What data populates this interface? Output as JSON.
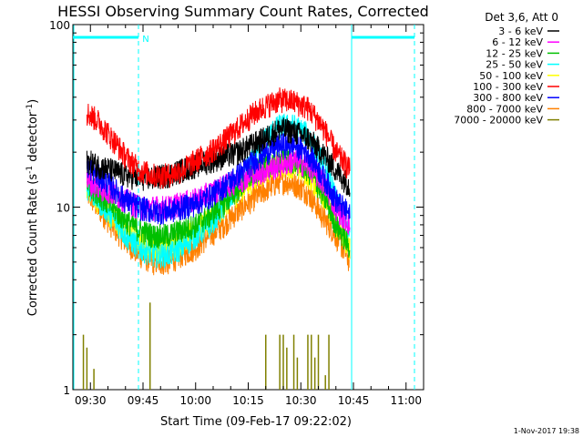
{
  "chart_data": {
    "type": "line",
    "title": "HESSI Observing Summary Count Rates, Corrected",
    "xlabel": "Start Time (09-Feb-17 09:22:02)",
    "ylabel_main": "Corrected Count Rate (s",
    "ylabel_sup": "-1",
    "ylabel_mid": " detector",
    "ylabel_sup2": "-1",
    "ylabel_end": ")",
    "y_scale": "log",
    "xlim_minutes": [
      565,
      665
    ],
    "ylim": [
      1,
      100
    ],
    "x_ticks": [
      {
        "label": "09:30",
        "minute": 570
      },
      {
        "label": "09:45",
        "minute": 585
      },
      {
        "label": "10:00",
        "minute": 600
      },
      {
        "label": "10:15",
        "minute": 615
      },
      {
        "label": "10:30",
        "minute": 630
      },
      {
        "label": "10:45",
        "minute": 645
      },
      {
        "label": "11:00",
        "minute": 660
      }
    ],
    "y_ticks": [
      {
        "label": "1",
        "value": 1
      },
      {
        "label": "10",
        "value": 10
      },
      {
        "label": "100",
        "value": 100
      }
    ],
    "legend_header": "Det 3,6, Att 0",
    "legend_position": "top-right-outside",
    "night_marker": "N",
    "timestamp": "1-Nov-2017 19:38",
    "series": [
      {
        "name": "3 - 6 keV",
        "color": "#000000",
        "x": [
          569,
          572,
          576,
          580,
          584,
          588,
          592,
          596,
          600,
          604,
          608,
          612,
          616,
          620,
          624,
          628,
          632,
          636,
          640,
          644
        ],
        "y": [
          18,
          17,
          16,
          15,
          14.5,
          14.5,
          15,
          16,
          17,
          18,
          19,
          20,
          22,
          24,
          27,
          26,
          24,
          20,
          16,
          13
        ]
      },
      {
        "name": "6 - 12 keV",
        "color": "#ff00ff",
        "x": [
          569,
          572,
          576,
          580,
          584,
          588,
          592,
          596,
          600,
          604,
          608,
          612,
          616,
          620,
          624,
          628,
          632,
          636,
          640,
          644
        ],
        "y": [
          14,
          13,
          12,
          11,
          10,
          10,
          10,
          10.5,
          11,
          12,
          13,
          14,
          15,
          16,
          17,
          18,
          17,
          14,
          10,
          8
        ]
      },
      {
        "name": "12 - 25 keV",
        "color": "#00c000",
        "x": [
          569,
          572,
          576,
          580,
          584,
          588,
          592,
          596,
          600,
          604,
          608,
          612,
          616,
          620,
          624,
          628,
          632,
          636,
          640,
          644
        ],
        "y": [
          14,
          12,
          10,
          8.5,
          7.5,
          7,
          7,
          7.5,
          8,
          9,
          10.5,
          12.5,
          15,
          17,
          18,
          18,
          16,
          12,
          8,
          6
        ]
      },
      {
        "name": "25 - 50 keV",
        "color": "#00ffff",
        "x": [
          569,
          572,
          576,
          580,
          584,
          588,
          592,
          596,
          600,
          604,
          608,
          612,
          616,
          620,
          624,
          628,
          632,
          636,
          640,
          644
        ],
        "y": [
          13,
          11,
          9,
          7,
          6,
          5.5,
          5.5,
          6,
          7,
          8,
          10,
          13,
          18,
          24,
          28,
          28,
          25,
          18,
          11,
          7
        ]
      },
      {
        "name": "50 - 100 keV",
        "color": "#ffff00",
        "x": [
          569,
          572,
          576,
          580,
          584,
          588,
          592,
          596,
          600,
          604,
          608,
          612,
          616,
          620,
          624,
          628,
          632,
          636,
          640,
          644
        ],
        "y": [
          13,
          11,
          9,
          7.5,
          6.5,
          6,
          6,
          6.5,
          7.5,
          8.5,
          10,
          12,
          14,
          16,
          17,
          17,
          15,
          12,
          8,
          6
        ]
      },
      {
        "name": "100 - 300 keV",
        "color": "#ff0000",
        "x": [
          569,
          572,
          576,
          580,
          584,
          588,
          592,
          596,
          600,
          604,
          608,
          612,
          616,
          620,
          624,
          628,
          632,
          636,
          640,
          644
        ],
        "y": [
          33,
          30,
          24,
          19,
          16,
          15,
          15,
          16,
          18,
          20,
          23,
          27,
          32,
          36,
          39,
          38,
          35,
          28,
          20,
          16
        ]
      },
      {
        "name": "300 - 800 keV",
        "color": "#0000ff",
        "x": [
          569,
          572,
          576,
          580,
          584,
          588,
          592,
          596,
          600,
          604,
          608,
          612,
          616,
          620,
          624,
          628,
          632,
          636,
          640,
          644
        ],
        "y": [
          17,
          15,
          13,
          11,
          10,
          9.5,
          9.5,
          10,
          10.5,
          11.5,
          13,
          15,
          17.5,
          20,
          22,
          22,
          20,
          15,
          11,
          9
        ]
      },
      {
        "name": "800 - 7000 keV",
        "color": "#ff8000",
        "x": [
          569,
          572,
          576,
          580,
          584,
          588,
          592,
          596,
          600,
          604,
          608,
          612,
          616,
          620,
          624,
          628,
          632,
          636,
          640,
          644
        ],
        "y": [
          12,
          10,
          8,
          6.5,
          5.5,
          5,
          5,
          5.5,
          6,
          7,
          8,
          9.5,
          11,
          12.5,
          14,
          13.5,
          12,
          9,
          7,
          5
        ]
      },
      {
        "name": "7000 - 20000 keV",
        "color": "#808000",
        "x": [
          569,
          571,
          574,
          577,
          580,
          583,
          586,
          589,
          592,
          595,
          598,
          601,
          604,
          607,
          610,
          613,
          616,
          619,
          622,
          625,
          628,
          631,
          634,
          637,
          640,
          643
        ],
        "y": [
          1,
          1,
          1,
          1,
          1,
          1,
          1,
          1,
          1,
          1,
          1,
          1,
          1,
          1,
          1,
          1,
          1,
          1,
          1,
          1,
          1,
          1,
          1,
          1,
          1,
          1
        ],
        "spikes_note_x": [
          568,
          569,
          571,
          587,
          620,
          624,
          625,
          626,
          628,
          629,
          632,
          633,
          634,
          635,
          637,
          638
        ],
        "spikes_y": [
          2,
          1.7,
          1.3,
          3,
          2,
          2,
          2,
          1.7,
          2,
          1.5,
          2,
          2,
          1.5,
          2,
          1.2,
          2
        ]
      }
    ]
  }
}
